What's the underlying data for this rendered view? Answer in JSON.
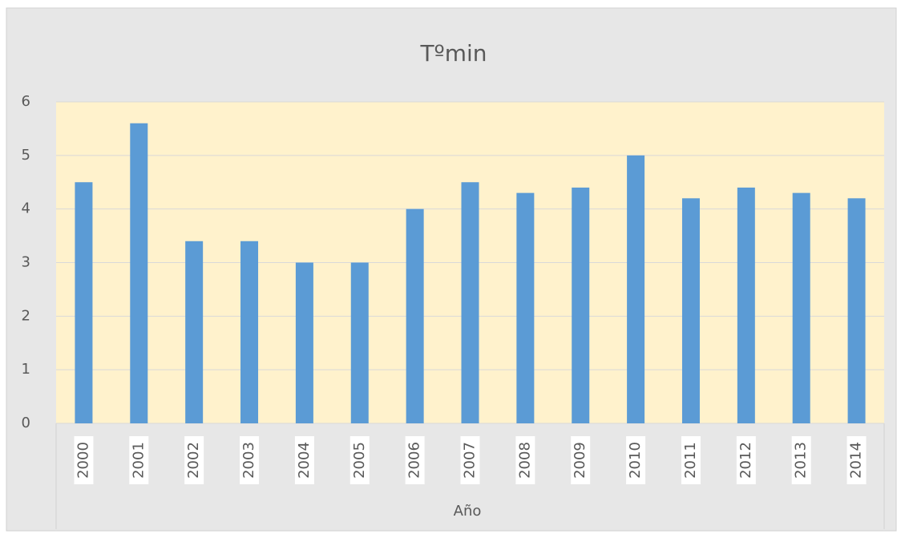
{
  "chart_data": {
    "type": "bar",
    "title": "Tºmin",
    "x_label": "Año",
    "categories": [
      "2000",
      "2001",
      "2002",
      "2003",
      "2004",
      "2005",
      "2006",
      "2007",
      "2008",
      "2009",
      "2010",
      "2011",
      "2012",
      "2013",
      "2014"
    ],
    "values": [
      4.5,
      5.6,
      3.4,
      3.4,
      3.0,
      3.0,
      4.0,
      4.5,
      4.3,
      4.4,
      5.0,
      4.2,
      4.4,
      4.3,
      4.2
    ],
    "color": "#5b9bd5",
    "ylim": [
      0,
      6
    ],
    "yticks": [
      0,
      1,
      2,
      3,
      4,
      5,
      6
    ],
    "grid": true
  }
}
